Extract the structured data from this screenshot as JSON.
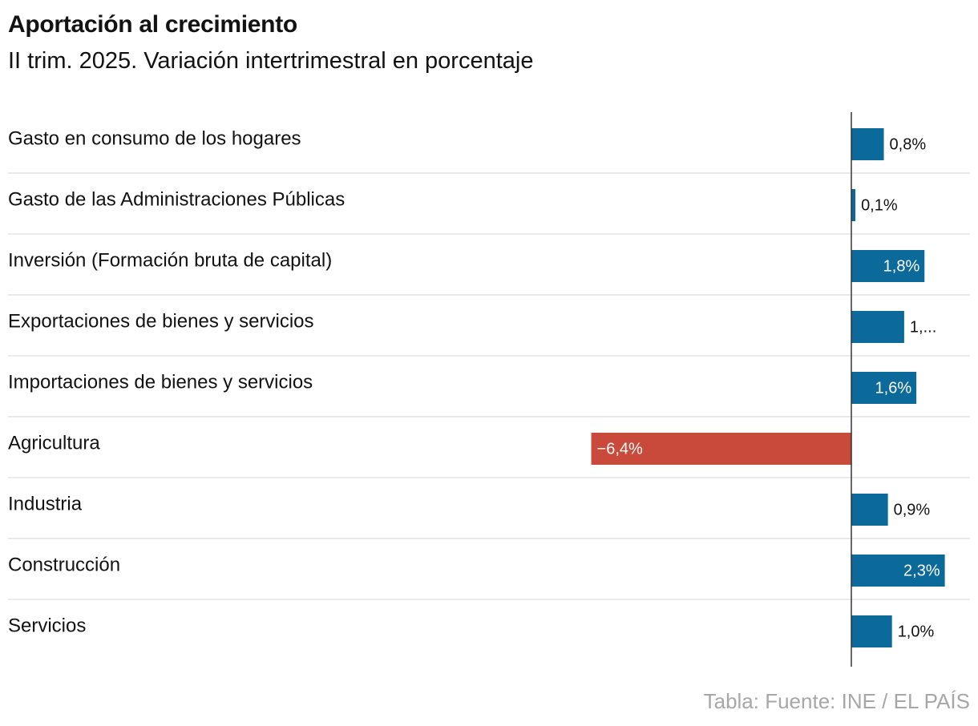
{
  "title": "Aportación al crecimiento",
  "subtitle": "II trim. 2025. Variación intertrimestral en porcentaje",
  "source": "Tabla: Fuente: INE / EL PAÍS",
  "colors": {
    "positive": "#0b6a99",
    "negative": "#c94a3a",
    "axis": "#333333",
    "separator": "#e3e3e3",
    "value_text_dark": "#121212",
    "value_text_light": "#ffffff"
  },
  "chart_data": {
    "type": "bar",
    "orientation": "horizontal",
    "categories": [
      "Gasto en consumo de los hogares",
      "Gasto de las Administraciones Públicas",
      "Inversión (Formación bruta de capital)",
      "Exportaciones de bienes y servicios",
      "Importaciones de bienes y servicios",
      "Agricultura",
      "Industria",
      "Construcción",
      "Servicios"
    ],
    "values": [
      0.8,
      0.1,
      1.8,
      1.3,
      1.6,
      -6.4,
      0.9,
      2.3,
      1.0
    ],
    "labels": [
      "0,8%",
      "0,1%",
      "1,8%",
      "1,...",
      "1,6%",
      "−6,4%",
      "0,9%",
      "2,3%",
      "1,0%"
    ],
    "label_inside": [
      false,
      false,
      true,
      false,
      true,
      true,
      false,
      true,
      false
    ],
    "xlim": [
      -6.4,
      2.9
    ],
    "grid": false,
    "legend": "none"
  }
}
